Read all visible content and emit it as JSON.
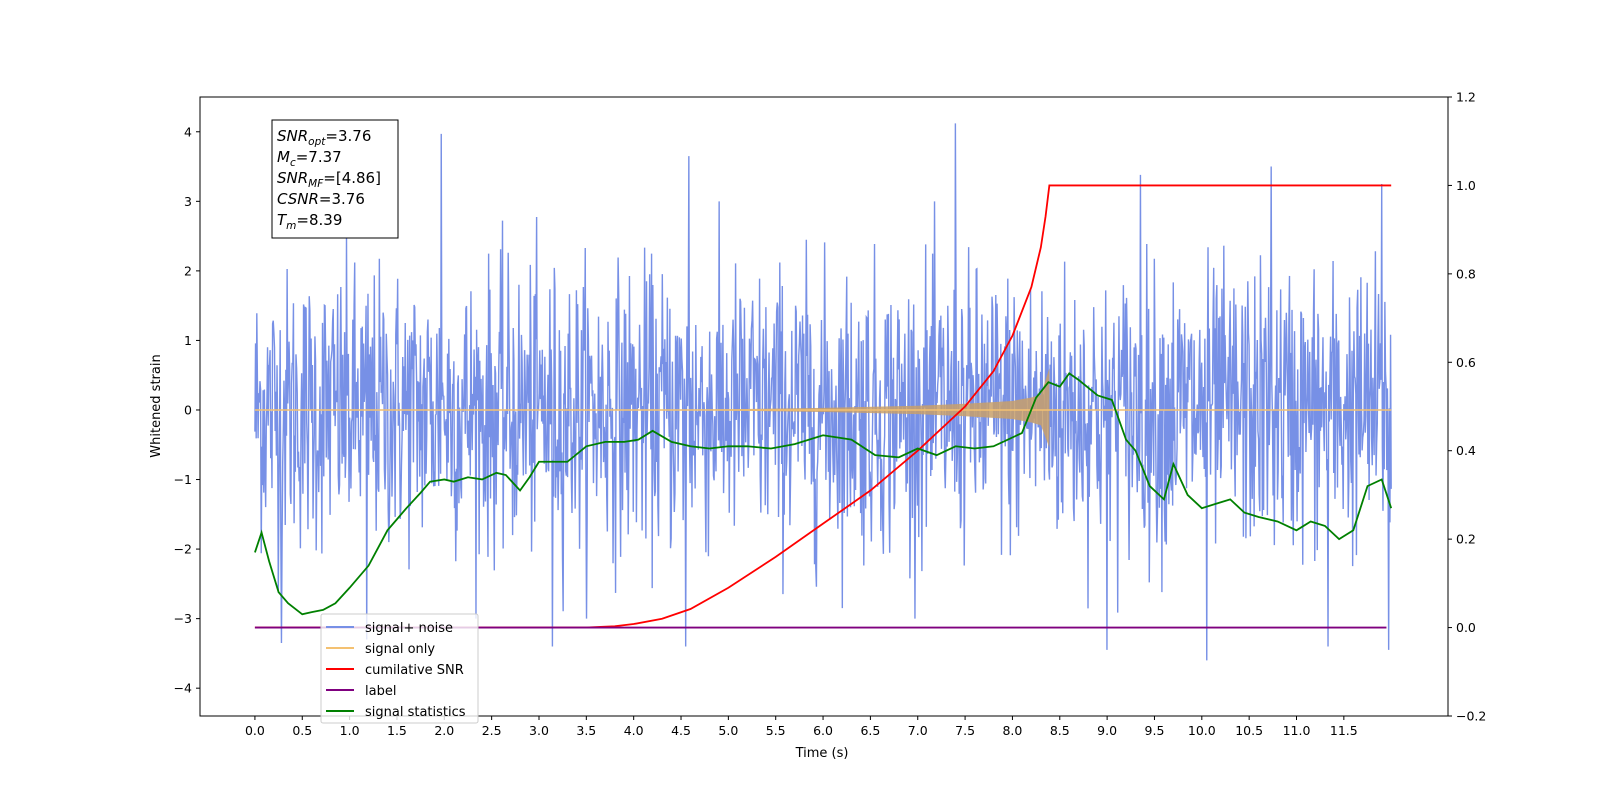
{
  "chart_data": {
    "type": "line",
    "xlabel": "Time (s)",
    "ylabel": "Whitened strain",
    "xlim": [
      -0.58,
      12.6
    ],
    "ylim": [
      -4.4,
      4.5
    ],
    "y2lim": [
      -0.2,
      1.2
    ],
    "x_ticks": [
      0.0,
      0.5,
      1.0,
      1.5,
      2.0,
      2.5,
      3.0,
      3.5,
      4.0,
      4.5,
      5.0,
      5.5,
      6.0,
      6.5,
      7.0,
      7.5,
      8.0,
      8.5,
      9.0,
      9.5,
      10.0,
      10.5,
      11.0,
      11.5
    ],
    "x_tick_labels": [
      "0.0",
      "0.5",
      "1.0",
      "1.5",
      "2.0",
      "2.5",
      "3.0",
      "3.5",
      "4.0",
      "4.5",
      "5.0",
      "5.5",
      "6.0",
      "6.5",
      "7.0",
      "7.5",
      "8.0",
      "8.5",
      "9.0",
      "9.5",
      "10.0",
      "10.5",
      "11.0",
      "11.5"
    ],
    "y_ticks": [
      -4,
      -3,
      -2,
      -1,
      0,
      1,
      2,
      3,
      4
    ],
    "y_tick_labels": [
      "−4",
      "−3",
      "−2",
      "−1",
      "0",
      "1",
      "2",
      "3",
      "4"
    ],
    "y2_ticks": [
      -0.2,
      0.0,
      0.2,
      0.4,
      0.6,
      0.8,
      1.0,
      1.2
    ],
    "y2_tick_labels": [
      "−0.2",
      "0.0",
      "0.2",
      "0.4",
      "0.6",
      "0.8",
      "1.0",
      "1.2"
    ],
    "grid": false,
    "legend_position": "lower-left",
    "annotation": [
      {
        "base": "SNR",
        "sub": "opt",
        "value": "=3.76"
      },
      {
        "base": "M",
        "sub": "c",
        "value": "=7.37"
      },
      {
        "base": "SNR",
        "sub": "MF",
        "value": "=[4.86]"
      },
      {
        "base": "CSNR",
        "sub": "",
        "value": "=3.76"
      },
      {
        "base": "T",
        "sub": "m",
        "value": "=8.39"
      }
    ],
    "series": [
      {
        "name": "signal+ noise",
        "axis": "left",
        "color": "#7790e6",
        "x_range": [
          0.0,
          12.0
        ],
        "std": 1.0,
        "spikes": [
          [
            0.28,
            -3.35
          ],
          [
            1.18,
            -3.3
          ],
          [
            1.97,
            3.97
          ],
          [
            3.14,
            -3.4
          ],
          [
            4.58,
            3.65
          ],
          [
            4.55,
            -3.4
          ],
          [
            7.4,
            4.12
          ],
          [
            9.0,
            -3.45
          ],
          [
            9.35,
            3.38
          ],
          [
            10.05,
            -3.6
          ],
          [
            10.73,
            3.5
          ],
          [
            11.33,
            -3.4
          ],
          [
            11.9,
            3.25
          ],
          [
            11.97,
            -3.45
          ]
        ]
      },
      {
        "name": "signal only",
        "axis": "left",
        "color": "#f4c171",
        "x_range": [
          0.0,
          12.0
        ],
        "note_x": [
          4.0,
          5.0,
          6.0,
          7.0,
          7.5,
          8.0,
          8.2,
          8.3,
          8.39
        ],
        "envelope": [
          0.0,
          0.01,
          0.03,
          0.06,
          0.09,
          0.13,
          0.18,
          0.22,
          0.6
        ]
      },
      {
        "name": "cumilative SNR",
        "axis": "right",
        "color": "#ff0000",
        "x": [
          0.0,
          3.5,
          3.8,
          4.0,
          4.3,
          4.6,
          5.0,
          5.5,
          6.0,
          6.5,
          7.0,
          7.5,
          7.8,
          8.0,
          8.2,
          8.3,
          8.35,
          8.39,
          12.0
        ],
        "y": [
          0.0,
          0.0,
          0.003,
          0.008,
          0.02,
          0.042,
          0.09,
          0.16,
          0.235,
          0.31,
          0.4,
          0.5,
          0.58,
          0.66,
          0.77,
          0.86,
          0.93,
          1.0,
          1.0
        ]
      },
      {
        "name": "label",
        "axis": "right",
        "color": "#7f007f",
        "x": [
          0.0,
          11.95
        ],
        "y": [
          0.0,
          0.0
        ]
      },
      {
        "name": "signal statistics",
        "axis": "right",
        "color": "#008000",
        "x": [
          0.0,
          0.07,
          0.15,
          0.25,
          0.35,
          0.5,
          0.6,
          0.72,
          0.85,
          1.0,
          1.2,
          1.4,
          1.5,
          1.6,
          1.75,
          1.85,
          2.0,
          2.1,
          2.25,
          2.4,
          2.55,
          2.65,
          2.8,
          2.9,
          3.0,
          3.15,
          3.3,
          3.5,
          3.7,
          3.9,
          4.05,
          4.2,
          4.4,
          4.6,
          4.8,
          5.0,
          5.2,
          5.45,
          5.7,
          6.0,
          6.3,
          6.55,
          6.8,
          7.0,
          7.2,
          7.4,
          7.6,
          7.8,
          7.95,
          8.1,
          8.25,
          8.38,
          8.5,
          8.6,
          8.7,
          8.9,
          9.05,
          9.2,
          9.3,
          9.45,
          9.6,
          9.7,
          9.85,
          10.0,
          10.15,
          10.3,
          10.45,
          10.6,
          10.8,
          11.0,
          11.15,
          11.3,
          11.45,
          11.6,
          11.75,
          11.9,
          12.0
        ],
        "y": [
          0.17,
          0.215,
          0.15,
          0.08,
          0.055,
          0.03,
          0.035,
          0.04,
          0.055,
          0.09,
          0.14,
          0.22,
          0.245,
          0.27,
          0.305,
          0.33,
          0.335,
          0.33,
          0.34,
          0.335,
          0.35,
          0.345,
          0.31,
          0.34,
          0.375,
          0.375,
          0.375,
          0.41,
          0.42,
          0.42,
          0.425,
          0.445,
          0.42,
          0.41,
          0.405,
          0.41,
          0.41,
          0.405,
          0.415,
          0.435,
          0.425,
          0.39,
          0.385,
          0.405,
          0.39,
          0.41,
          0.405,
          0.41,
          0.425,
          0.44,
          0.52,
          0.555,
          0.545,
          0.575,
          0.56,
          0.525,
          0.515,
          0.425,
          0.4,
          0.32,
          0.29,
          0.37,
          0.3,
          0.27,
          0.28,
          0.29,
          0.26,
          0.25,
          0.24,
          0.22,
          0.24,
          0.23,
          0.2,
          0.22,
          0.32,
          0.335,
          0.27
        ]
      }
    ]
  }
}
